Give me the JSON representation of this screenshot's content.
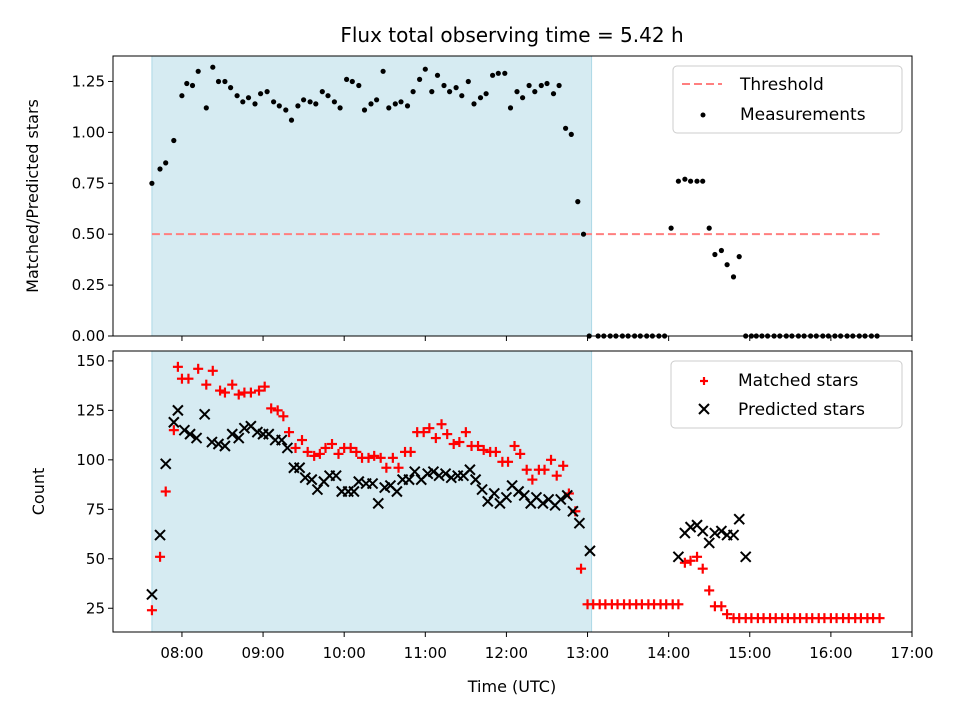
{
  "chart_data": [
    {
      "type": "scatter",
      "title": "Flux total observing time = 5.42 h",
      "ylabel": "Matched/Predicted stars",
      "xlabel": "",
      "xlim_hours": [
        7.15,
        17.0
      ],
      "ylim": [
        0,
        1.375
      ],
      "yticks": [
        0,
        0.25,
        0.5,
        0.75,
        1.0,
        1.25
      ],
      "ytick_labels": [
        "0.00",
        "0.25",
        "0.50",
        "0.75",
        "1.00",
        "1.25"
      ],
      "shaded_span_hours": [
        7.63,
        13.05
      ],
      "threshold": {
        "label": "Threshold",
        "value": 0.5,
        "x_range_hours": [
          7.63,
          16.6
        ],
        "color": "#ff7f7f"
      },
      "legend": [
        "Threshold",
        "Measurements"
      ],
      "legend_position": "top-right",
      "series": [
        {
          "name": "Measurements",
          "color": "#000000",
          "x_hours": [
            7.63,
            7.73,
            7.8,
            7.9,
            8.0,
            8.06,
            8.13,
            8.2,
            8.3,
            8.38,
            8.45,
            8.53,
            8.6,
            8.68,
            8.75,
            8.82,
            8.9,
            8.97,
            9.05,
            9.13,
            9.2,
            9.28,
            9.35,
            9.43,
            9.5,
            9.58,
            9.65,
            9.73,
            9.8,
            9.88,
            9.95,
            10.03,
            10.1,
            10.18,
            10.25,
            10.33,
            10.4,
            10.48,
            10.55,
            10.63,
            10.7,
            10.78,
            10.85,
            10.93,
            11.0,
            11.08,
            11.15,
            11.23,
            11.3,
            11.38,
            11.45,
            11.53,
            11.6,
            11.68,
            11.75,
            11.83,
            11.9,
            11.98,
            12.05,
            12.13,
            12.2,
            12.28,
            12.35,
            12.43,
            12.5,
            12.58,
            12.65,
            12.73,
            12.8,
            12.88,
            12.95,
            13.02,
            13.13,
            13.2,
            13.28,
            13.35,
            13.43,
            13.5,
            13.58,
            13.65,
            13.73,
            13.8,
            13.88,
            13.95,
            14.03,
            14.12,
            14.2,
            14.27,
            14.35,
            14.42,
            14.5,
            14.57,
            14.65,
            14.72,
            14.8,
            14.87,
            14.95,
            15.02,
            15.08,
            15.15,
            15.22,
            15.3,
            15.37,
            15.45,
            15.52,
            15.6,
            15.67,
            15.75,
            15.82,
            15.9,
            15.97,
            16.05,
            16.12,
            16.2,
            16.27,
            16.35,
            16.42,
            16.5,
            16.57
          ],
          "y": [
            0.75,
            0.82,
            0.85,
            0.96,
            1.18,
            1.24,
            1.23,
            1.3,
            1.12,
            1.32,
            1.25,
            1.25,
            1.22,
            1.18,
            1.15,
            1.17,
            1.14,
            1.19,
            1.2,
            1.15,
            1.13,
            1.11,
            1.06,
            1.13,
            1.16,
            1.15,
            1.14,
            1.2,
            1.18,
            1.15,
            1.12,
            1.26,
            1.25,
            1.23,
            1.11,
            1.14,
            1.16,
            1.3,
            1.12,
            1.14,
            1.15,
            1.13,
            1.2,
            1.26,
            1.31,
            1.2,
            1.28,
            1.23,
            1.2,
            1.22,
            1.18,
            1.25,
            1.14,
            1.17,
            1.19,
            1.28,
            1.29,
            1.29,
            1.12,
            1.2,
            1.17,
            1.23,
            1.2,
            1.23,
            1.24,
            1.19,
            1.23,
            1.02,
            0.99,
            0.66,
            0.5,
            0.0,
            0.0,
            0.0,
            0.0,
            0.0,
            0.0,
            0.0,
            0.0,
            0.0,
            0.0,
            0.0,
            0.0,
            0.0,
            0.53,
            0.76,
            0.77,
            0.76,
            0.76,
            0.76,
            0.53,
            0.4,
            0.42,
            0.35,
            0.29,
            0.39,
            0.0,
            0.0,
            0.0,
            0.0,
            0.0,
            0.0,
            0.0,
            0.0,
            0.0,
            0.0,
            0.0,
            0.0,
            0.0,
            0.0,
            0.0,
            0.0,
            0.0,
            0.0,
            0.0,
            0.0,
            0.0,
            0.0,
            0.0
          ]
        }
      ]
    },
    {
      "type": "scatter",
      "title": "",
      "ylabel": "Count",
      "xlabel": "Time (UTC)",
      "xlim_hours": [
        7.15,
        17.0
      ],
      "xticks_hours": [
        8,
        9,
        10,
        11,
        12,
        13,
        14,
        15,
        16,
        17
      ],
      "xtick_labels": [
        "08:00",
        "09:00",
        "10:00",
        "11:00",
        "12:00",
        "13:00",
        "14:00",
        "15:00",
        "16:00",
        "17:00"
      ],
      "ylim": [
        13,
        155
      ],
      "yticks": [
        25,
        50,
        75,
        100,
        125,
        150
      ],
      "ytick_labels": [
        "25",
        "50",
        "75",
        "100",
        "125",
        "150"
      ],
      "shaded_span_hours": [
        7.63,
        13.05
      ],
      "legend": [
        "Matched stars",
        "Predicted stars"
      ],
      "legend_position": "top-right",
      "series": [
        {
          "name": "Matched stars",
          "marker": "plus",
          "color": "#ff0000",
          "x_hours": [
            7.63,
            7.73,
            7.8,
            7.9,
            7.95,
            8.0,
            8.08,
            8.2,
            8.3,
            8.38,
            8.47,
            8.53,
            8.62,
            8.7,
            8.77,
            8.85,
            8.95,
            9.02,
            9.1,
            9.18,
            9.25,
            9.32,
            9.4,
            9.48,
            9.55,
            9.63,
            9.7,
            9.77,
            9.85,
            9.93,
            10.0,
            10.08,
            10.15,
            10.22,
            10.3,
            10.37,
            10.45,
            10.52,
            10.6,
            10.67,
            10.75,
            10.82,
            10.9,
            10.98,
            11.05,
            11.13,
            11.2,
            11.27,
            11.35,
            11.42,
            11.5,
            11.57,
            11.65,
            11.72,
            11.8,
            11.87,
            11.95,
            12.02,
            12.1,
            12.17,
            12.25,
            12.32,
            12.4,
            12.47,
            12.55,
            12.62,
            12.7,
            12.77,
            12.85,
            12.92,
            13.0,
            13.07,
            13.15,
            13.22,
            13.3,
            13.37,
            13.45,
            13.52,
            13.6,
            13.67,
            13.75,
            13.82,
            13.9,
            13.97,
            14.05,
            14.12,
            14.2,
            14.27,
            14.35,
            14.42,
            14.5,
            14.57,
            14.65,
            14.72,
            14.8,
            14.87,
            14.95,
            15.02,
            15.1,
            15.17,
            15.25,
            15.32,
            15.4,
            15.47,
            15.55,
            15.62,
            15.7,
            15.77,
            15.85,
            15.92,
            16.0,
            16.07,
            16.15,
            16.22,
            16.3,
            16.37,
            16.45,
            16.52,
            16.6
          ],
          "y": [
            24,
            51,
            84,
            115,
            147,
            141,
            141,
            146,
            138,
            145,
            135,
            134,
            138,
            133,
            134,
            134,
            135,
            137,
            126,
            125,
            122,
            114,
            106,
            110,
            104,
            102,
            103,
            106,
            108,
            103,
            106,
            106,
            104,
            101,
            101,
            102,
            101,
            96,
            101,
            96,
            104,
            104,
            114,
            114,
            116,
            111,
            118,
            113,
            108,
            109,
            114,
            107,
            107,
            105,
            104,
            104,
            99,
            99,
            107,
            103,
            95,
            90,
            95,
            95,
            100,
            92,
            97,
            83,
            74,
            45,
            27,
            27,
            27,
            27,
            27,
            27,
            27,
            27,
            27,
            27,
            27,
            27,
            27,
            27,
            27,
            27,
            48,
            49,
            51,
            45,
            34,
            26,
            26,
            22,
            20,
            20,
            20,
            20,
            20,
            20,
            20,
            20,
            20,
            20,
            20,
            20,
            20,
            20,
            20,
            20,
            20,
            20,
            20,
            20,
            20,
            20,
            20,
            20,
            20
          ],
          "x_hours_trim": true
        },
        {
          "name": "Predicted stars",
          "marker": "x",
          "color": "#000000",
          "x_hours": [
            7.63,
            7.73,
            7.8,
            7.9,
            7.95,
            8.03,
            8.1,
            8.18,
            8.28,
            8.37,
            8.45,
            8.53,
            8.62,
            8.7,
            8.77,
            8.85,
            8.93,
            9.0,
            9.07,
            9.15,
            9.23,
            9.3,
            9.38,
            9.45,
            9.52,
            9.6,
            9.67,
            9.75,
            9.82,
            9.9,
            9.97,
            10.05,
            10.12,
            10.18,
            10.27,
            10.35,
            10.42,
            10.5,
            10.57,
            10.65,
            10.72,
            10.8,
            10.87,
            10.95,
            11.03,
            11.1,
            11.17,
            11.25,
            11.32,
            11.4,
            11.47,
            11.55,
            11.62,
            11.7,
            11.77,
            11.85,
            11.92,
            12.0,
            12.07,
            12.15,
            12.22,
            12.3,
            12.37,
            12.45,
            12.52,
            12.6,
            12.67,
            12.75,
            12.82,
            12.9,
            13.03,
            14.12,
            14.2,
            14.27,
            14.35,
            14.42,
            14.5,
            14.57,
            14.65,
            14.72,
            14.8,
            14.87,
            14.95
          ],
          "y": [
            32,
            62,
            98,
            119,
            125,
            115,
            113,
            111,
            123,
            109,
            108,
            107,
            113,
            111,
            116,
            117,
            114,
            113,
            113,
            110,
            110,
            106,
            96,
            96,
            91,
            90,
            85,
            89,
            92,
            92,
            84,
            84,
            84,
            89,
            88,
            88,
            78,
            86,
            87,
            84,
            90,
            90,
            94,
            90,
            93,
            94,
            92,
            93,
            91,
            92,
            92,
            95,
            90,
            85,
            79,
            83,
            78,
            81,
            87,
            84,
            82,
            78,
            81,
            78,
            80,
            77,
            80,
            82,
            74,
            68,
            54,
            51,
            63,
            66,
            67,
            64,
            58,
            63,
            64,
            62,
            62,
            70,
            51
          ]
        }
      ]
    }
  ]
}
